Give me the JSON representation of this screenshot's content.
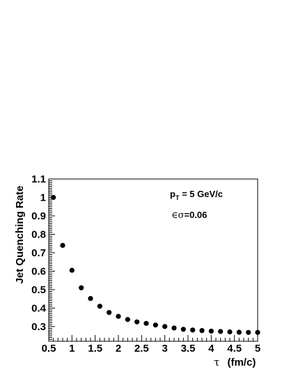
{
  "chart_data": {
    "type": "scatter",
    "title": "",
    "xlabel_symbol": "τ",
    "xlabel_unit": "(fm/c)",
    "ylabel": "Jet Quenching Rate",
    "xlim": [
      0.5,
      5.0
    ],
    "ylim": [
      0.22,
      1.1
    ],
    "xticks": [
      0.5,
      1,
      1.5,
      2,
      2.5,
      3,
      3.5,
      4,
      4.5,
      5
    ],
    "xtick_labels": [
      "0.5",
      "1",
      "1.5",
      "2",
      "2.5",
      "3",
      "3.5",
      "4",
      "4.5",
      "5"
    ],
    "yticks": [
      0.3,
      0.4,
      0.5,
      0.6,
      0.7,
      0.8,
      0.9,
      1.0,
      1.1
    ],
    "ytick_labels": [
      "0.3",
      "0.4",
      "0.5",
      "0.6",
      "0.7",
      "0.8",
      "0.9",
      "1",
      "1.1"
    ],
    "grid": false,
    "legend": "none",
    "marker_color": "#000000",
    "frame_color": "#000000",
    "annotations": {
      "pt_main": "p",
      "pt_sub": "T",
      "pt_rest": " = 5 GeV/c",
      "eps_symbol": "∈σ",
      "eps_rest": "=0.06"
    },
    "x": [
      0.6,
      0.8,
      1.0,
      1.2,
      1.4,
      1.6,
      1.8,
      2.0,
      2.2,
      2.4,
      2.6,
      2.8,
      3.0,
      3.2,
      3.4,
      3.6,
      3.8,
      4.0,
      4.2,
      4.4,
      4.6,
      4.8,
      5.0
    ],
    "y": [
      1.0,
      0.74,
      0.605,
      0.51,
      0.452,
      0.41,
      0.376,
      0.355,
      0.338,
      0.325,
      0.317,
      0.308,
      0.3,
      0.292,
      0.285,
      0.281,
      0.278,
      0.275,
      0.273,
      0.271,
      0.269,
      0.268,
      0.268
    ]
  }
}
